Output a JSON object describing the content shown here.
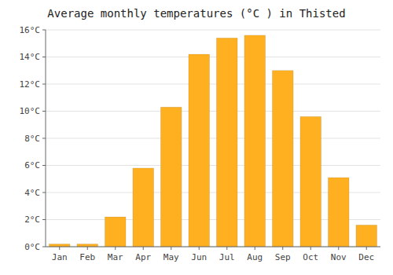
{
  "chart_data": {
    "type": "bar",
    "title": "Average monthly temperatures (°C ) in Thisted",
    "categories": [
      "Jan",
      "Feb",
      "Mar",
      "Apr",
      "May",
      "Jun",
      "Jul",
      "Aug",
      "Sep",
      "Oct",
      "Nov",
      "Dec"
    ],
    "values": [
      0.2,
      0.2,
      2.2,
      5.8,
      10.3,
      14.2,
      15.4,
      15.6,
      13.0,
      9.6,
      5.1,
      1.6
    ],
    "color": "#FFB020",
    "ylim": [
      0,
      16
    ],
    "yticks": [
      {
        "value": 0,
        "label": "0°C"
      },
      {
        "value": 2,
        "label": "2°C"
      },
      {
        "value": 4,
        "label": "4°C"
      },
      {
        "value": 6,
        "label": "6°C"
      },
      {
        "value": 8,
        "label": "8°C"
      },
      {
        "value": 10,
        "label": "10°C"
      },
      {
        "value": 12,
        "label": "12°C"
      },
      {
        "value": 14,
        "label": "14°C"
      },
      {
        "value": 16,
        "label": "16°C"
      }
    ],
    "grid": true
  }
}
